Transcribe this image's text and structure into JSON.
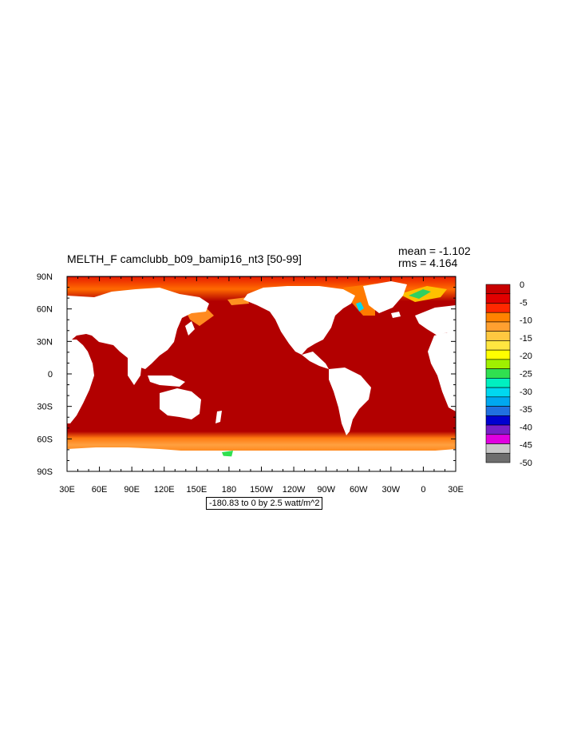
{
  "title": "MELTH_F camclubb_b09_bamip16_nt3 [50-99]",
  "stats": {
    "mean": "mean = -1.102",
    "rms": "rms = 4.164"
  },
  "contour_info": "-180.83 to 0 by 2.5 watt/m^2",
  "axes": {
    "x_ticks": [
      "30E",
      "60E",
      "90E",
      "120E",
      "150E",
      "180",
      "150W",
      "120W",
      "90W",
      "60W",
      "30W",
      "0",
      "30E"
    ],
    "y_ticks": [
      "90N",
      "60N",
      "30N",
      "0",
      "30S",
      "60S",
      "90S"
    ]
  },
  "colors": {
    "ocean": "#b20000",
    "land": "#ffffff"
  },
  "colorbar": {
    "labels": [
      "0",
      "-5",
      "-10",
      "-15",
      "-20",
      "-25",
      "-30",
      "-35",
      "-40",
      "-45",
      "-50"
    ],
    "colors": [
      "#c80000",
      "#e10000",
      "#ff2800",
      "#ff8200",
      "#ffa030",
      "#ffc840",
      "#ffe640",
      "#ffff00",
      "#a0f000",
      "#30e050",
      "#00f0c0",
      "#00d8f0",
      "#00a8f0",
      "#2070e0",
      "#0000d0",
      "#7820c8",
      "#e000e0",
      "#c8c8c8",
      "#6e6e6e"
    ]
  }
}
